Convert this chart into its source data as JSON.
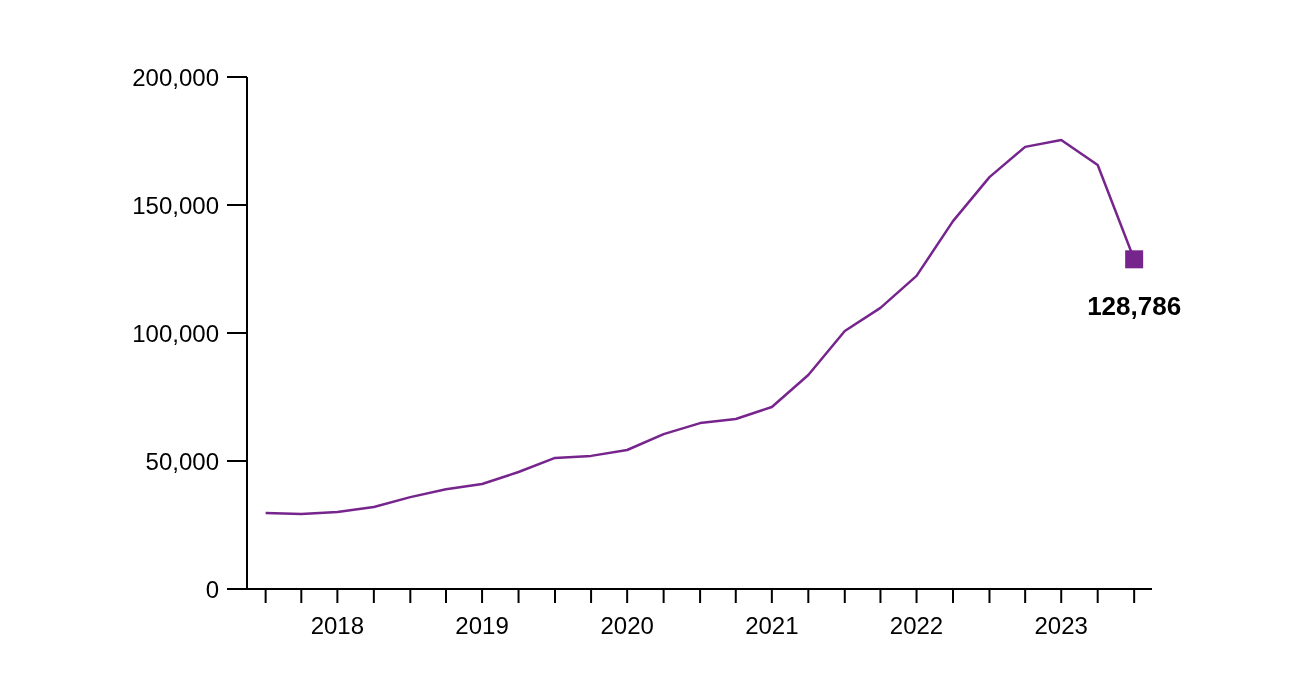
{
  "chart_data": {
    "type": "line",
    "x": [
      "2018-01",
      "2018-04",
      "2018-07",
      "2018-10",
      "2019-01",
      "2019-04",
      "2019-07",
      "2019-10",
      "2020-01",
      "2020-04",
      "2020-07",
      "2020-10",
      "2021-01",
      "2021-04",
      "2021-07",
      "2021-10",
      "2022-01",
      "2022-04",
      "2022-07",
      "2022-10",
      "2023-01",
      "2023-04",
      "2023-07",
      "2023-10",
      "2024-01"
    ],
    "series": [
      {
        "color": "#76258c",
        "values": [
          29700,
          29300,
          30100,
          32000,
          35900,
          39000,
          41000,
          45700,
          51200,
          52000,
          54300,
          60500,
          64800,
          66400,
          71100,
          83600,
          100800,
          109800,
          122300,
          143700,
          160900,
          172700,
          175400,
          165600,
          128786
        ],
        "value_labels": [
          null,
          null,
          null,
          null,
          null,
          null,
          null,
          null,
          null,
          null,
          null,
          null,
          null,
          null,
          null,
          null,
          null,
          null,
          null,
          null,
          null,
          null,
          null,
          null,
          "128,786"
        ]
      }
    ],
    "line_style": "solid",
    "grid": false,
    "legend": false,
    "xlim": [
      "2017-11-15",
      "2024-02-15"
    ],
    "xticks": [
      {
        "value": "2018-01",
        "label": null
      },
      {
        "value": "2018-04",
        "label": null
      },
      {
        "value": "2018-07",
        "label": "2018"
      },
      {
        "value": "2018-10",
        "label": null
      },
      {
        "value": "2019-01",
        "label": null
      },
      {
        "value": "2019-04",
        "label": null
      },
      {
        "value": "2019-07",
        "label": "2019"
      },
      {
        "value": "2019-10",
        "label": null
      },
      {
        "value": "2020-01",
        "label": null
      },
      {
        "value": "2020-04",
        "label": null
      },
      {
        "value": "2020-07",
        "label": "2020"
      },
      {
        "value": "2020-10",
        "label": null
      },
      {
        "value": "2021-01",
        "label": null
      },
      {
        "value": "2021-04",
        "label": null
      },
      {
        "value": "2021-07",
        "label": "2021"
      },
      {
        "value": "2021-10",
        "label": null
      },
      {
        "value": "2022-01",
        "label": null
      },
      {
        "value": "2022-04",
        "label": null
      },
      {
        "value": "2022-07",
        "label": "2022"
      },
      {
        "value": "2022-10",
        "label": null
      },
      {
        "value": "2023-01",
        "label": null
      },
      {
        "value": "2023-04",
        "label": null
      },
      {
        "value": "2023-07",
        "label": "2023"
      },
      {
        "value": "2023-10",
        "label": null
      },
      {
        "value": "2024-01",
        "label": null
      }
    ],
    "ylim": [
      0,
      200000
    ],
    "yticks": [
      {
        "value": 0,
        "label": "0"
      },
      {
        "value": 50000,
        "label": "50,000"
      },
      {
        "value": 100000,
        "label": "100,000"
      },
      {
        "value": 150000,
        "label": "150,000"
      },
      {
        "value": 200000,
        "label": "200,000"
      }
    ]
  }
}
